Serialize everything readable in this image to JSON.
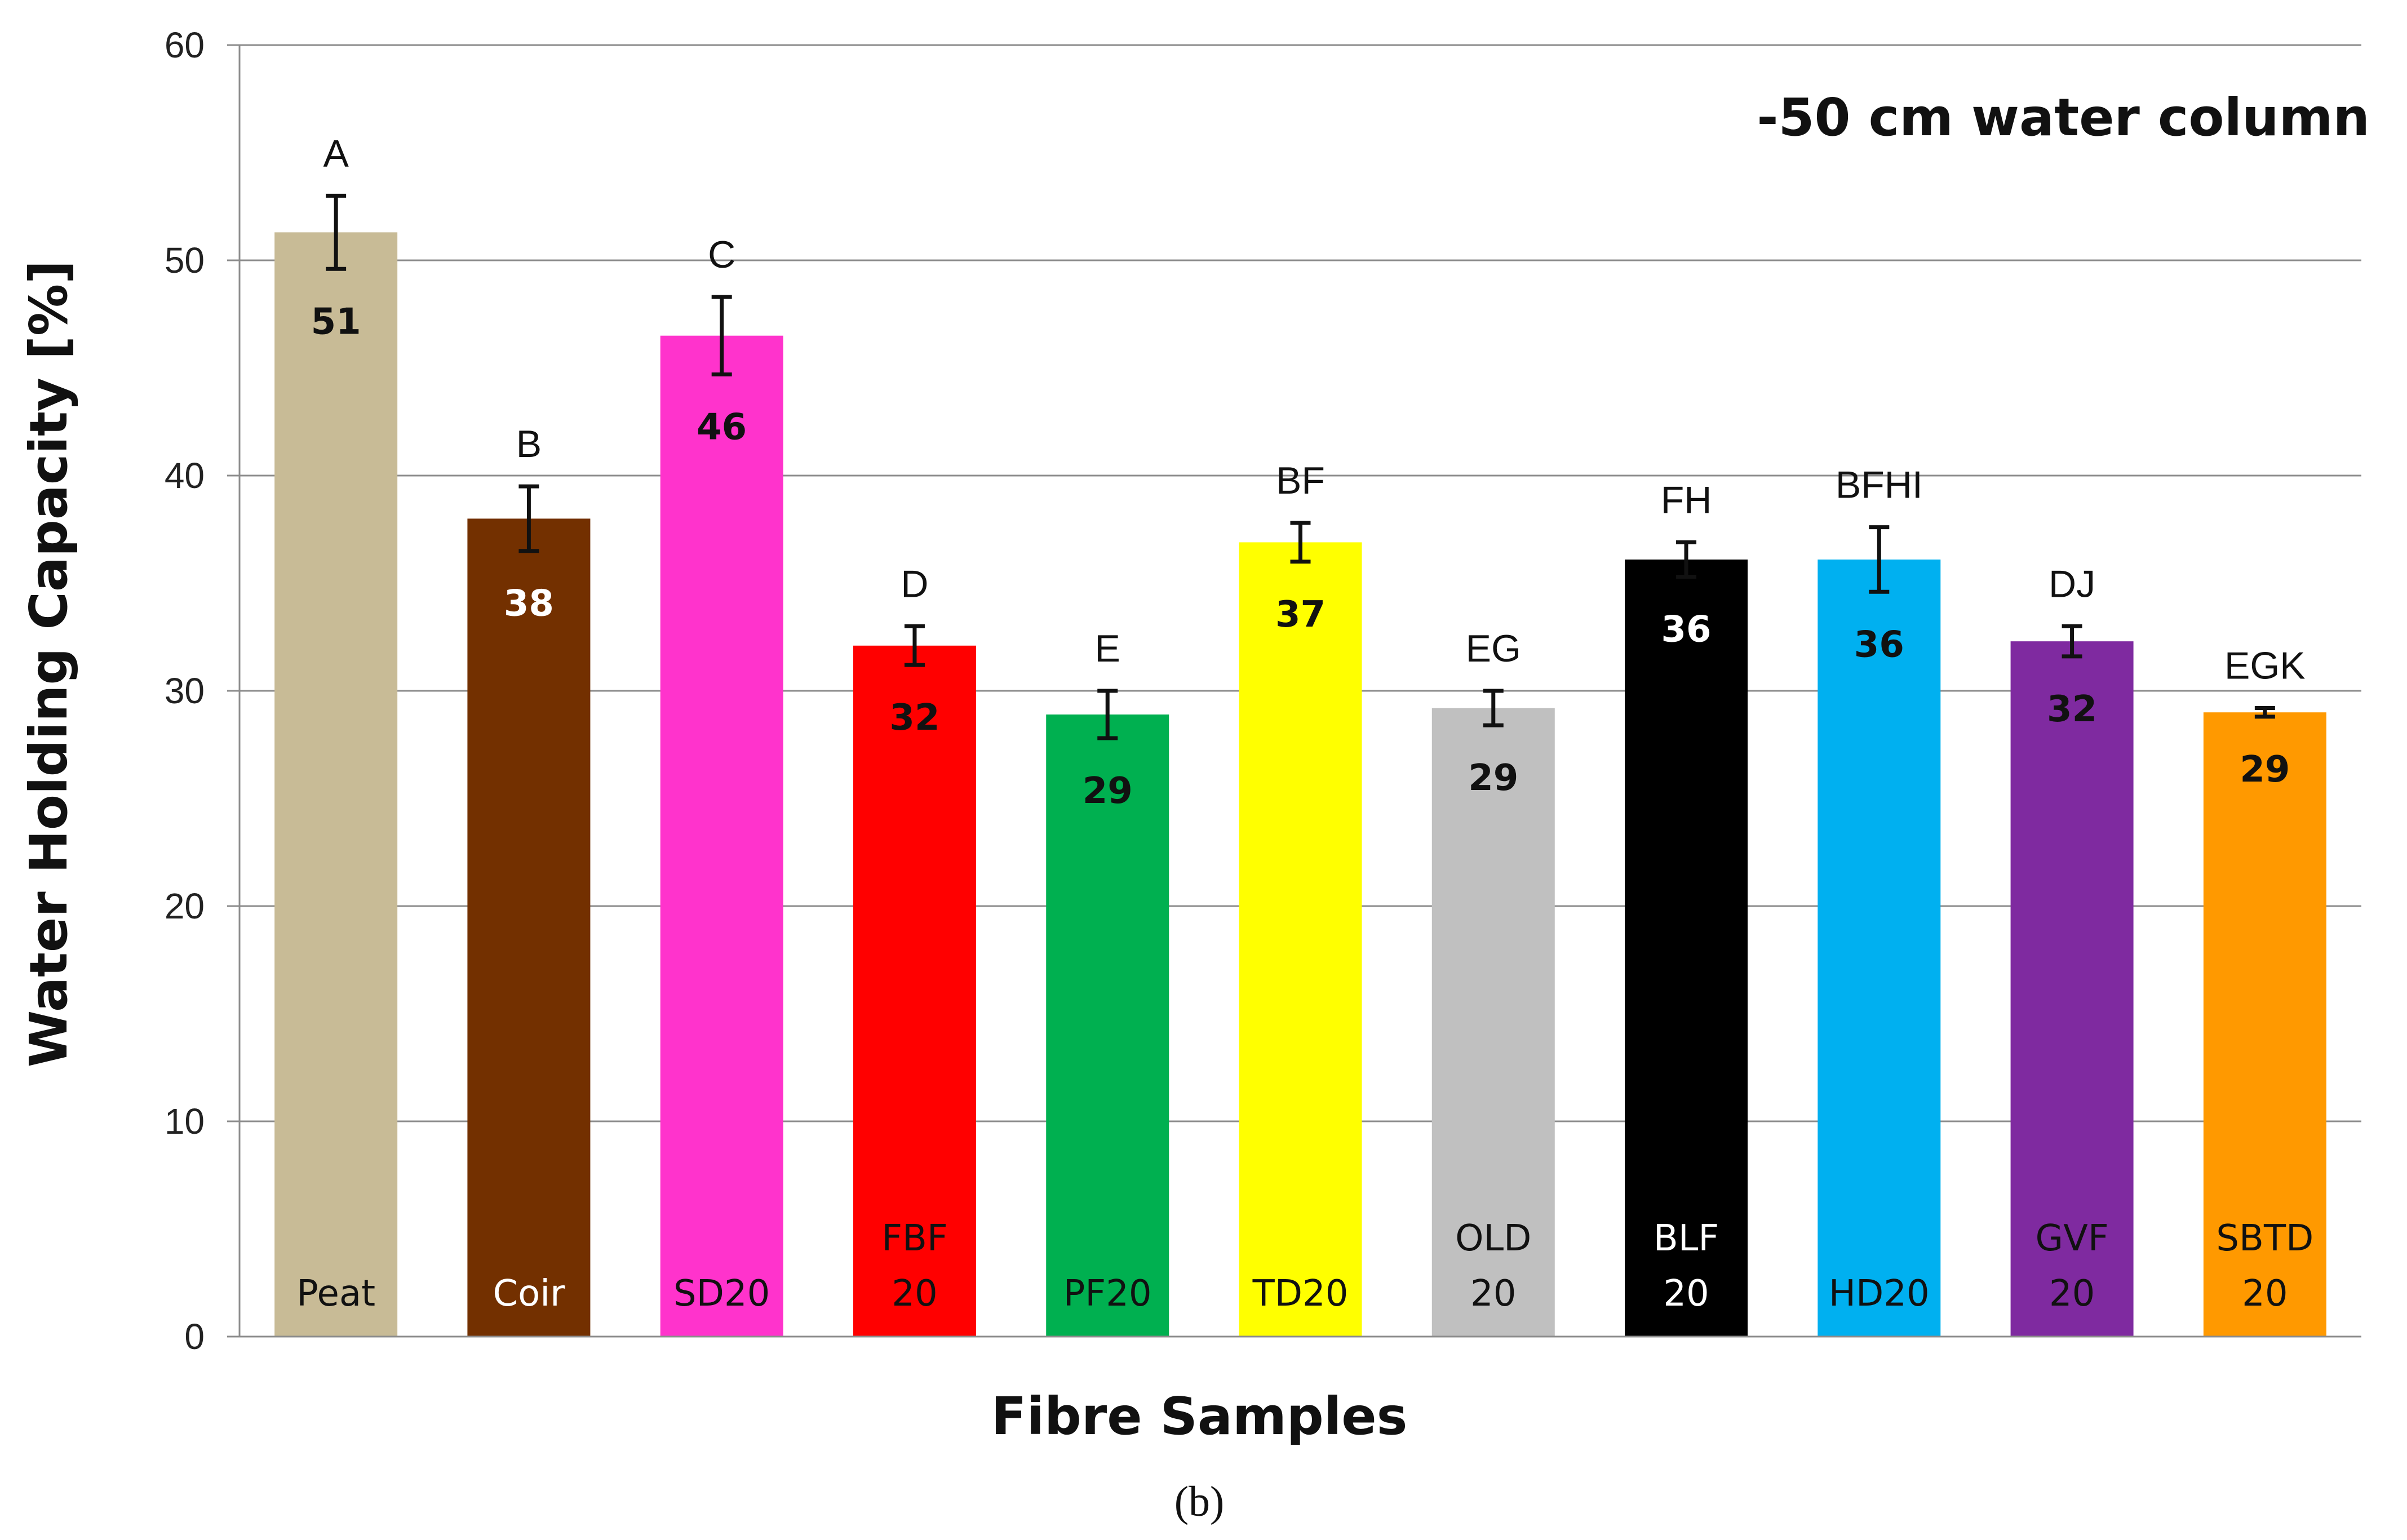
{
  "chart_data": {
    "type": "bar",
    "ylabel": "Water Holding Capacity [%]",
    "xlabel": "Fibre Samples",
    "annotation": "-50 cm water column",
    "panel_label": "(b)",
    "ylim": [
      0,
      60
    ],
    "yticks": [
      "0",
      "10",
      "20",
      "30",
      "40",
      "50",
      "60"
    ],
    "grid": true,
    "bars": [
      {
        "category": [
          "Peat"
        ],
        "value": 51.3,
        "value_label": "51",
        "error": 1.7,
        "letter": "A",
        "color": "#C8BB96",
        "text_color": "#111111"
      },
      {
        "category": [
          "Coir"
        ],
        "value": 38.0,
        "value_label": "38",
        "error": 1.5,
        "letter": "B",
        "color": "#733000",
        "text_color": "#ffffff"
      },
      {
        "category": [
          "SD20"
        ],
        "value": 46.5,
        "value_label": "46",
        "error": 1.8,
        "letter": "C",
        "color": "#FF33CC",
        "text_color": "#111111"
      },
      {
        "category": [
          "FBF",
          "20"
        ],
        "value": 32.1,
        "value_label": "32",
        "error": 0.9,
        "letter": "D",
        "color": "#FF0000",
        "text_color": "#111111"
      },
      {
        "category": [
          "PF20"
        ],
        "value": 28.9,
        "value_label": "29",
        "error": 1.1,
        "letter": "E",
        "color": "#00B050",
        "text_color": "#111111"
      },
      {
        "category": [
          "TD20"
        ],
        "value": 36.9,
        "value_label": "37",
        "error": 0.9,
        "letter": "BF",
        "color": "#FFFF00",
        "text_color": "#111111"
      },
      {
        "category": [
          "OLD",
          "20"
        ],
        "value": 29.2,
        "value_label": "29",
        "error": 0.8,
        "letter": "EG",
        "color": "#C0C0C0",
        "text_color": "#111111"
      },
      {
        "category": [
          "BLF",
          "20"
        ],
        "value": 36.1,
        "value_label": "36",
        "error": 0.8,
        "letter": "FH",
        "color": "#000000",
        "text_color": "#ffffff"
      },
      {
        "category": [
          "HD20"
        ],
        "value": 36.1,
        "value_label": "36",
        "error": 1.5,
        "letter": "BFHI",
        "color": "#00B0F0",
        "text_color": "#111111"
      },
      {
        "category": [
          "GVF",
          "20"
        ],
        "value": 32.3,
        "value_label": "32",
        "error": 0.7,
        "letter": "DJ",
        "color": "#7F2AA0",
        "text_color": "#111111"
      },
      {
        "category": [
          "SBTD",
          "20"
        ],
        "value": 29.0,
        "value_label": "29",
        "error": 0.2,
        "letter": "EGK",
        "color": "#FF9900",
        "text_color": "#111111"
      }
    ]
  }
}
